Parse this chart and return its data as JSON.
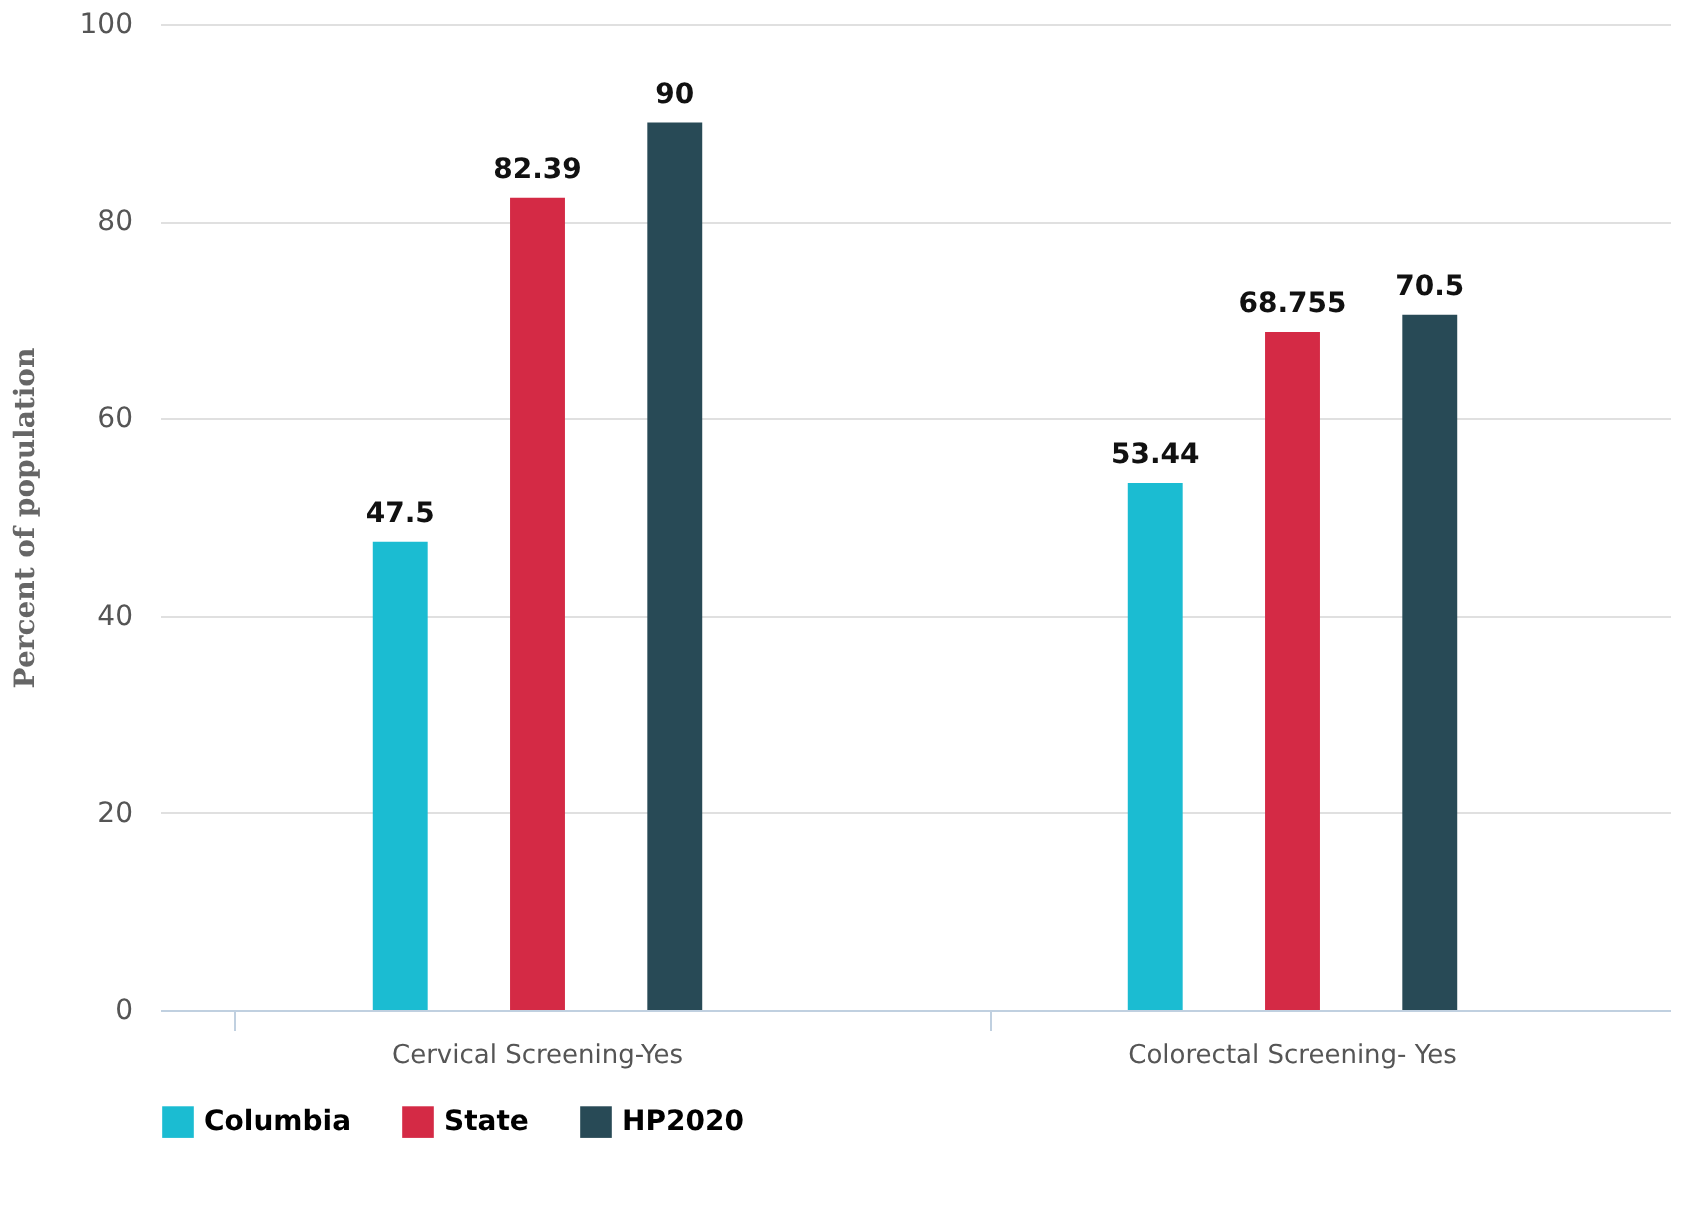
{
  "chart_data": {
    "type": "bar",
    "ylabel": "Percent of population",
    "categories": [
      "Cervical Screening-Yes",
      "Colorectal Screening- Yes"
    ],
    "series": [
      {
        "name": "Columbia",
        "color": "#1bbcd2",
        "values": [
          47.5,
          53.44
        ]
      },
      {
        "name": "State",
        "color": "#d42a45",
        "values": [
          82.39,
          68.755
        ]
      },
      {
        "name": "HP2020",
        "color": "#284a56",
        "values": [
          90,
          70.5
        ]
      }
    ],
    "ylim": [
      0,
      100
    ],
    "yticks": [
      0,
      20,
      40,
      60,
      80,
      100
    ],
    "grid": "y",
    "legend": "bottom",
    "data_labels": true
  }
}
